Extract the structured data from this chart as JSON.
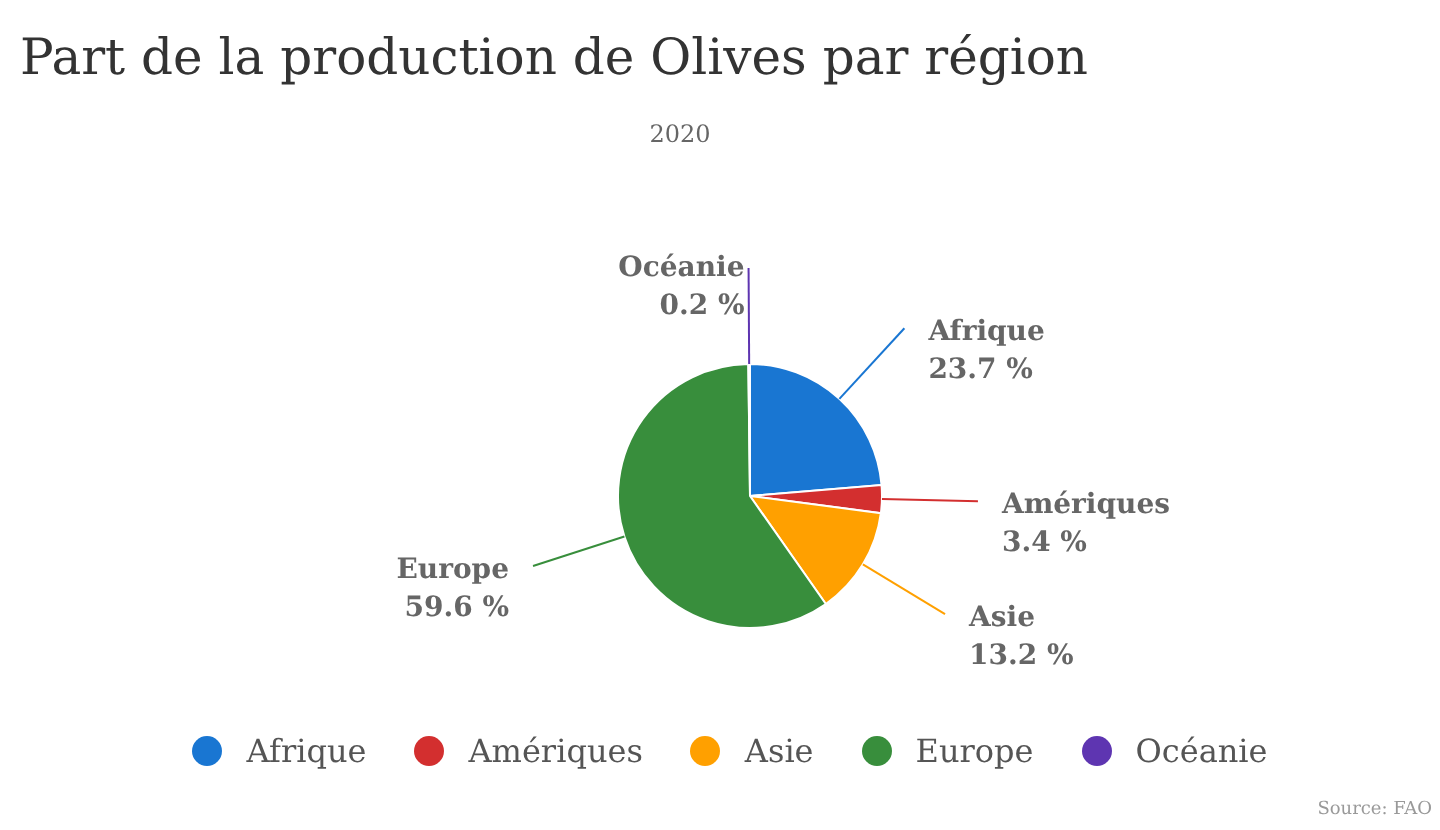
{
  "chart_data": {
    "type": "pie",
    "title": "Part de la production de Olives par région",
    "subtitle": "2020",
    "categories": [
      "Afrique",
      "Amériques",
      "Asie",
      "Europe",
      "Océanie"
    ],
    "values": [
      23.7,
      3.4,
      13.2,
      59.6,
      0.2
    ],
    "value_labels": [
      "23.7 %",
      "3.4 %",
      "13.2 %",
      "59.6 %",
      "0.2 %"
    ],
    "colors": [
      "#1976d2",
      "#d32f2f",
      "#ffa000",
      "#388e3c",
      "#5e35b1"
    ],
    "legend": "bottom",
    "annotations": [
      "Source: FAO"
    ]
  }
}
